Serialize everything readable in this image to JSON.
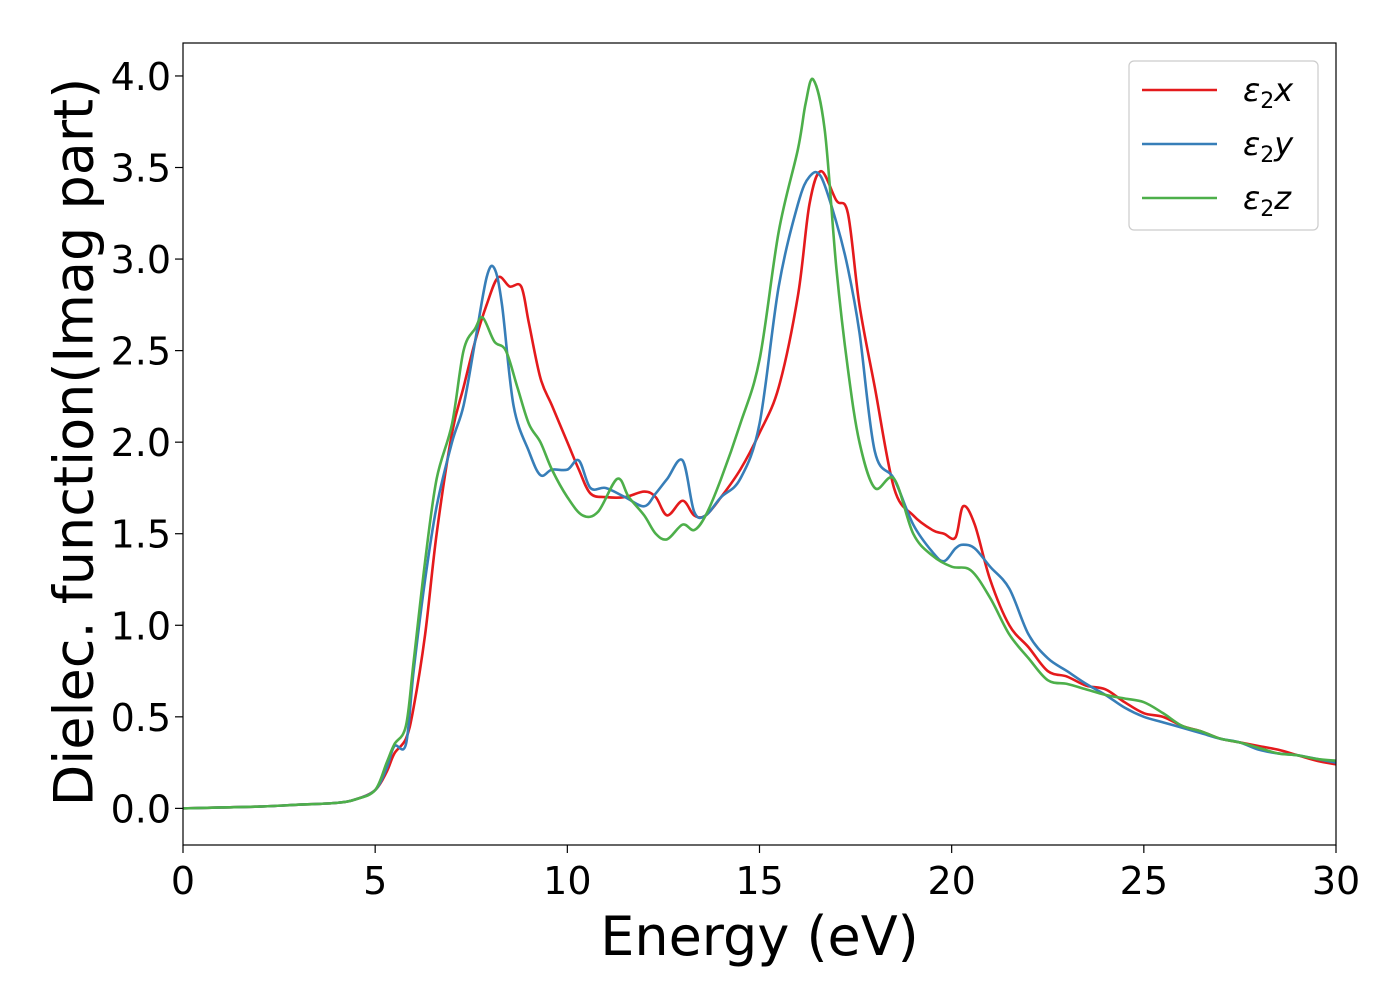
{
  "chart_data": {
    "type": "line",
    "xlabel": "Energy (eV)",
    "ylabel": "Dielec. function(Imag part)",
    "xlim": [
      0,
      30
    ],
    "ylim": [
      -0.2,
      4.18
    ],
    "xticks": [
      0,
      5,
      10,
      15,
      20,
      25,
      30
    ],
    "xtick_labels": [
      "0",
      "5",
      "10",
      "15",
      "20",
      "25",
      "30"
    ],
    "yticks": [
      0.0,
      0.5,
      1.0,
      1.5,
      2.0,
      2.5,
      3.0,
      3.5,
      4.0
    ],
    "ytick_labels": [
      "0.0",
      "0.5",
      "1.0",
      "1.5",
      "2.0",
      "2.5",
      "3.0",
      "3.5",
      "4.0"
    ],
    "grid": false,
    "legend": "top-right",
    "series": [
      {
        "name": "ε₂x",
        "legend_main": "ε",
        "legend_sub": "2",
        "legend_suffix": "x",
        "color": "#e41a1c",
        "x": [
          0,
          1,
          2,
          3,
          4,
          4.5,
          5,
          5.3,
          5.5,
          5.8,
          6,
          6.3,
          6.6,
          7,
          7.3,
          7.6,
          7.9,
          8.2,
          8.5,
          8.8,
          9,
          9.3,
          9.6,
          10,
          10.3,
          10.6,
          11,
          11.5,
          12,
          12.3,
          12.6,
          13,
          13.3,
          13.6,
          14,
          14.5,
          15,
          15.5,
          16,
          16.3,
          16.6,
          17,
          17.3,
          17.6,
          18,
          18.5,
          19,
          19.5,
          19.8,
          20.1,
          20.3,
          20.6,
          21,
          21.5,
          22,
          22.5,
          23,
          23.5,
          24,
          24.5,
          25,
          25.5,
          26,
          26.5,
          27,
          27.5,
          28,
          28.5,
          29,
          29.5,
          30
        ],
        "values": [
          0,
          0.005,
          0.01,
          0.02,
          0.03,
          0.05,
          0.1,
          0.2,
          0.3,
          0.38,
          0.55,
          0.95,
          1.5,
          2.05,
          2.3,
          2.55,
          2.75,
          2.9,
          2.85,
          2.85,
          2.65,
          2.35,
          2.2,
          2.0,
          1.85,
          1.72,
          1.7,
          1.7,
          1.73,
          1.7,
          1.6,
          1.68,
          1.6,
          1.6,
          1.7,
          1.85,
          2.05,
          2.3,
          2.8,
          3.3,
          3.48,
          3.32,
          3.25,
          2.75,
          2.3,
          1.75,
          1.6,
          1.52,
          1.5,
          1.48,
          1.65,
          1.55,
          1.25,
          1.0,
          0.88,
          0.75,
          0.72,
          0.67,
          0.65,
          0.58,
          0.52,
          0.5,
          0.45,
          0.42,
          0.38,
          0.36,
          0.34,
          0.32,
          0.29,
          0.26,
          0.24
        ]
      },
      {
        "name": "ε₂y",
        "legend_main": "ε",
        "legend_sub": "2",
        "legend_suffix": "y",
        "color": "#377eb8",
        "x": [
          0,
          1,
          2,
          3,
          4,
          4.5,
          5,
          5.3,
          5.5,
          5.8,
          6,
          6.3,
          6.6,
          7,
          7.3,
          7.6,
          7.9,
          8.1,
          8.3,
          8.6,
          9,
          9.3,
          9.6,
          10,
          10.3,
          10.6,
          11,
          11.5,
          12,
          12.3,
          12.6,
          13,
          13.3,
          13.6,
          14,
          14.5,
          15,
          15.5,
          16,
          16.3,
          16.6,
          17,
          17.3,
          17.6,
          18,
          18.5,
          19,
          19.5,
          19.8,
          20.1,
          20.3,
          20.6,
          21,
          21.5,
          22,
          22.5,
          23,
          23.5,
          24,
          24.5,
          25,
          25.5,
          26,
          26.5,
          27,
          27.5,
          28,
          28.5,
          29,
          29.5,
          30
        ],
        "values": [
          0,
          0.005,
          0.01,
          0.02,
          0.03,
          0.05,
          0.1,
          0.22,
          0.34,
          0.35,
          0.75,
          1.25,
          1.65,
          2.0,
          2.2,
          2.55,
          2.9,
          2.95,
          2.75,
          2.2,
          1.95,
          1.82,
          1.85,
          1.85,
          1.9,
          1.75,
          1.75,
          1.7,
          1.65,
          1.72,
          1.8,
          1.9,
          1.62,
          1.6,
          1.7,
          1.8,
          2.1,
          2.85,
          3.3,
          3.45,
          3.45,
          3.2,
          2.95,
          2.6,
          1.95,
          1.8,
          1.55,
          1.4,
          1.35,
          1.42,
          1.44,
          1.42,
          1.32,
          1.2,
          0.95,
          0.82,
          0.75,
          0.68,
          0.62,
          0.55,
          0.5,
          0.47,
          0.44,
          0.41,
          0.38,
          0.36,
          0.32,
          0.3,
          0.29,
          0.27,
          0.25
        ]
      },
      {
        "name": "ε₂z",
        "legend_main": "ε",
        "legend_sub": "2",
        "legend_suffix": "z",
        "color": "#4daf4a",
        "x": [
          0,
          1,
          2,
          3,
          4,
          4.5,
          5,
          5.3,
          5.5,
          5.8,
          6,
          6.3,
          6.6,
          7,
          7.3,
          7.6,
          7.8,
          8.1,
          8.4,
          8.7,
          9,
          9.3,
          9.6,
          10,
          10.4,
          10.8,
          11.3,
          11.6,
          12,
          12.3,
          12.6,
          13,
          13.3,
          13.6,
          14,
          14.5,
          15,
          15.5,
          16,
          16.2,
          16.4,
          16.7,
          17,
          17.3,
          17.6,
          18,
          18.5,
          19,
          19.5,
          20,
          20.5,
          21,
          21.5,
          22,
          22.5,
          23,
          23.5,
          24,
          24.5,
          25,
          25.5,
          26,
          26.5,
          27,
          27.5,
          28,
          28.5,
          29,
          29.5,
          30
        ],
        "values": [
          0,
          0.005,
          0.01,
          0.02,
          0.03,
          0.05,
          0.1,
          0.25,
          0.35,
          0.45,
          0.8,
          1.35,
          1.8,
          2.1,
          2.5,
          2.62,
          2.68,
          2.55,
          2.5,
          2.3,
          2.1,
          2.0,
          1.85,
          1.7,
          1.6,
          1.62,
          1.8,
          1.7,
          1.6,
          1.5,
          1.47,
          1.55,
          1.52,
          1.6,
          1.8,
          2.1,
          2.45,
          3.15,
          3.6,
          3.85,
          3.98,
          3.7,
          2.95,
          2.4,
          2.0,
          1.75,
          1.8,
          1.5,
          1.38,
          1.32,
          1.3,
          1.15,
          0.95,
          0.82,
          0.7,
          0.68,
          0.65,
          0.62,
          0.6,
          0.58,
          0.52,
          0.45,
          0.42,
          0.38,
          0.36,
          0.33,
          0.3,
          0.29,
          0.27,
          0.26
        ]
      }
    ]
  }
}
